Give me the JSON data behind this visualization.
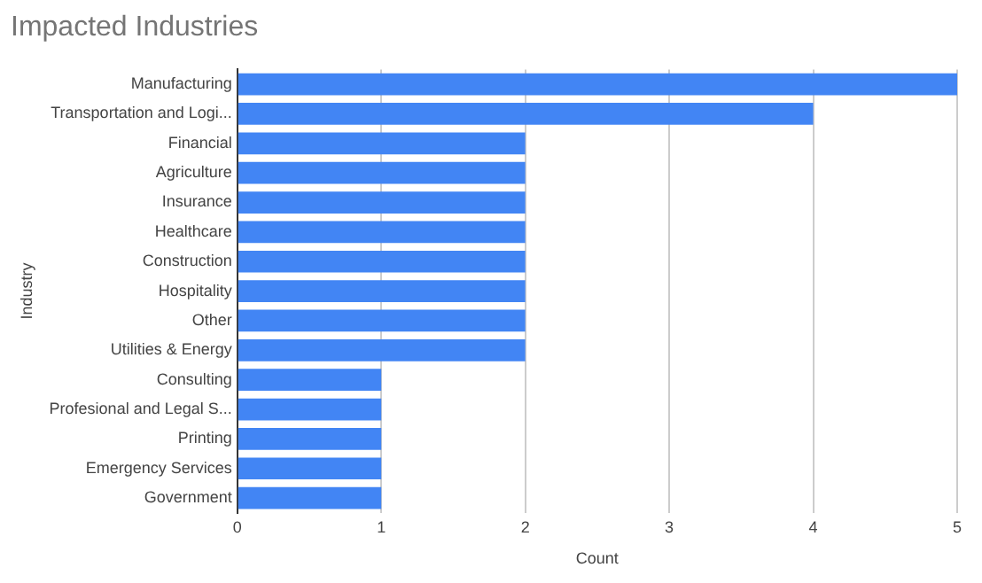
{
  "chart_data": {
    "type": "bar",
    "orientation": "horizontal",
    "title": "Impacted Industries",
    "xlabel": "Count",
    "ylabel": "Industry",
    "categories": [
      "Manufacturing",
      "Transportation and Logi...",
      "Financial",
      "Agriculture",
      "Insurance",
      "Healthcare",
      "Construction",
      "Hospitality",
      "Other",
      "Utilities & Energy",
      "Consulting",
      "Profesional and Legal S...",
      "Printing",
      "Emergency Services",
      "Government"
    ],
    "values": [
      5,
      4,
      2,
      2,
      2,
      2,
      2,
      2,
      2,
      2,
      1,
      1,
      1,
      1,
      1
    ],
    "color": "#4285f4",
    "xlim": [
      0,
      5
    ],
    "xticks": [
      0,
      1,
      2,
      3,
      4,
      5
    ],
    "grid": "x",
    "legend": false
  }
}
